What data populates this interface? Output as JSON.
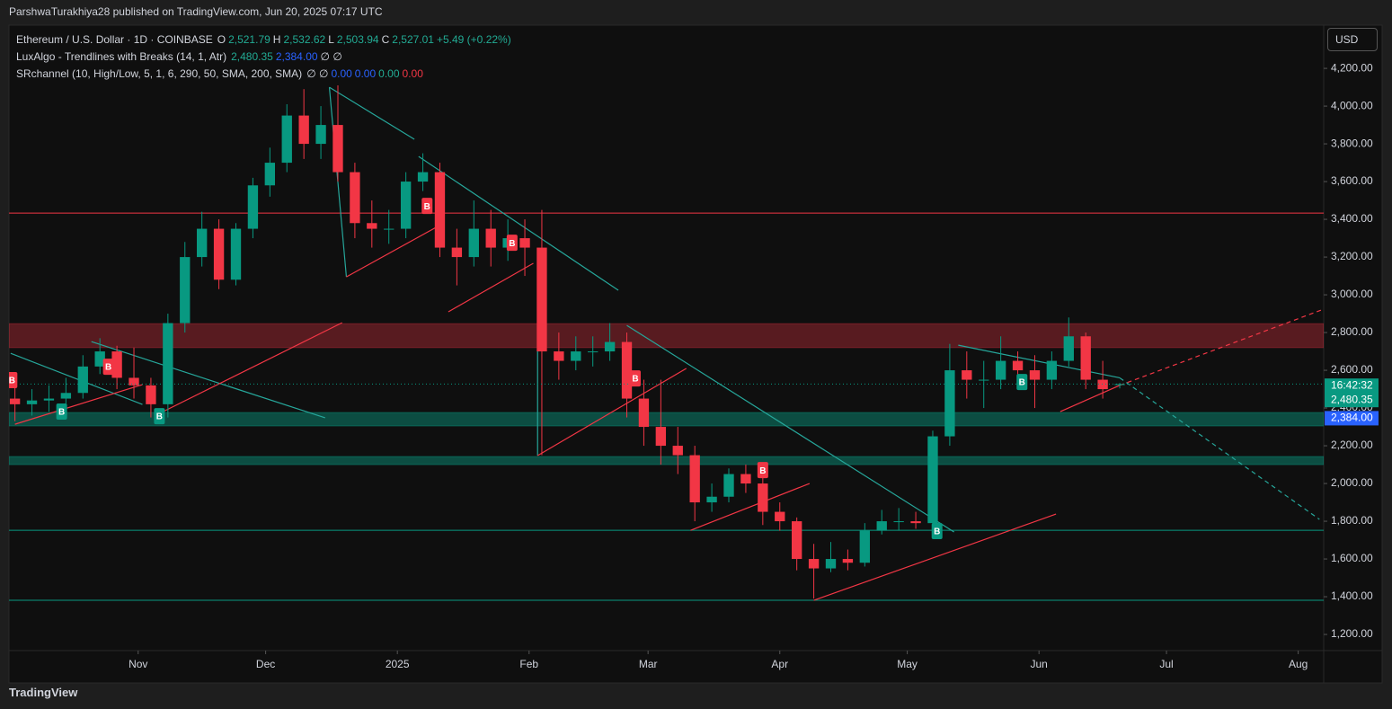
{
  "header": {
    "byline": "ParshwaTurakhiya28 published on TradingView.com, Jun 20, 2025 07:17 UTC",
    "currency": "USD",
    "footer": "TradingView"
  },
  "legend": [
    {
      "text": "Ethereum / U.S. Dollar · 1D · COINBASE",
      "items": [
        {
          "text": "O",
          "color": "#d1d4dc"
        },
        {
          "text": "2,521.79",
          "color": "#22ab94"
        },
        {
          "text": "H",
          "color": "#d1d4dc"
        },
        {
          "text": "2,532.62",
          "color": "#22ab94"
        },
        {
          "text": "L",
          "color": "#d1d4dc"
        },
        {
          "text": "2,503.94",
          "color": "#22ab94"
        },
        {
          "text": "C",
          "color": "#d1d4dc"
        },
        {
          "text": "2,527.01",
          "color": "#22ab94"
        },
        {
          "text": "+5.49 (+0.22%)",
          "color": "#22ab94"
        }
      ]
    },
    {
      "text": "LuxAlgo - Trendlines with Breaks (14, 1, Atr)",
      "items": [
        {
          "text": "2,480.35",
          "color": "#22ab94"
        },
        {
          "text": "2,384.00",
          "color": "#2962ff"
        },
        {
          "text": "∅ ∅",
          "color": "#d1d4dc"
        }
      ]
    },
    {
      "text": "SRchannel (10, High/Low, 5, 1, 6, 290, 50, SMA, 200, SMA)",
      "items": [
        {
          "text": "∅ ∅",
          "color": "#d1d4dc"
        },
        {
          "text": "0.00",
          "color": "#2962ff"
        },
        {
          "text": "0.00",
          "color": "#2962ff"
        },
        {
          "text": "0.00",
          "color": "#22ab94"
        },
        {
          "text": "0.00",
          "color": "#f23645"
        }
      ]
    }
  ],
  "chart_data": {
    "type": "candlestick",
    "xlim": [
      0.6,
      310
    ],
    "ylim": [
      1124,
      4429
    ],
    "xticks": [
      {
        "value": 31,
        "label": "Nov"
      },
      {
        "value": 61,
        "label": "Dec"
      },
      {
        "value": 92,
        "label": "2025"
      },
      {
        "value": 123,
        "label": "Feb"
      },
      {
        "value": 151,
        "label": "Mar"
      },
      {
        "value": 182,
        "label": "Apr"
      },
      {
        "value": 212,
        "label": "May"
      },
      {
        "value": 243,
        "label": "Jun"
      },
      {
        "value": 273,
        "label": "Jul"
      },
      {
        "value": 304,
        "label": "Aug"
      }
    ],
    "yticks": [
      {
        "value": 1200,
        "label": "1,200.00"
      },
      {
        "value": 1400,
        "label": "1,400.00"
      },
      {
        "value": 1600,
        "label": "1,600.00"
      },
      {
        "value": 1800,
        "label": "1,800.00"
      },
      {
        "value": 2000,
        "label": "2,000.00"
      },
      {
        "value": 2200,
        "label": "2,200.00"
      },
      {
        "value": 2400,
        "label": "2,400.00"
      },
      {
        "value": 2600,
        "label": "2,600.00"
      },
      {
        "value": 2800,
        "label": "2,800.00"
      },
      {
        "value": 3000,
        "label": "3,000.00"
      },
      {
        "value": 3200,
        "label": "3,200.00"
      },
      {
        "value": 3400,
        "label": "3,400.00"
      },
      {
        "value": 3600,
        "label": "3,600.00"
      },
      {
        "value": 3800,
        "label": "3,800.00"
      },
      {
        "value": 4000,
        "label": "4,000.00"
      },
      {
        "value": 4200,
        "label": "4,200.00"
      }
    ],
    "up_color": "#089981",
    "down_color": "#f23645",
    "x": [
      2,
      6,
      10,
      14,
      18,
      22,
      26,
      30,
      34,
      38,
      42,
      46,
      50,
      54,
      58,
      62,
      66,
      70,
      74,
      78,
      82,
      86,
      90,
      94,
      98,
      102,
      106,
      110,
      114,
      118,
      122,
      126,
      130,
      134,
      138,
      142,
      146,
      150,
      154,
      158,
      162,
      166,
      170,
      174,
      178,
      182,
      186,
      190,
      194,
      198,
      202,
      206,
      210,
      214,
      218,
      222,
      226,
      230,
      234,
      238,
      242,
      246,
      250,
      254,
      258,
      262
    ],
    "open": [
      2450,
      2420,
      2440,
      2450,
      2480,
      2620,
      2700,
      2560,
      2520,
      2420,
      2850,
      3200,
      3350,
      3080,
      3350,
      3580,
      3700,
      3950,
      3800,
      3900,
      3650,
      3380,
      3350,
      3350,
      3600,
      3650,
      3250,
      3200,
      3350,
      3250,
      3300,
      3250,
      2700,
      2650,
      2700,
      2700,
      2750,
      2450,
      2300,
      2200,
      2150,
      1900,
      1930,
      2050,
      2000,
      1850,
      1800,
      1600,
      1550,
      1600,
      1580,
      1750,
      1800,
      1800,
      1790,
      2250,
      2600,
      2550,
      2550,
      2650,
      2600,
      2550,
      2650,
      2780,
      2550,
      2521.79
    ],
    "high": [
      2520,
      2500,
      2520,
      2560,
      2680,
      2770,
      2730,
      2720,
      2560,
      2900,
      3280,
      3440,
      3400,
      3380,
      3620,
      3780,
      4010,
      4090,
      4000,
      4110,
      3700,
      3500,
      3450,
      3650,
      3750,
      3700,
      3350,
      3500,
      3450,
      3400,
      3400,
      3450,
      2800,
      2780,
      2780,
      2850,
      2800,
      2550,
      2550,
      2300,
      2200,
      2000,
      2080,
      2100,
      2050,
      1900,
      1820,
      1680,
      1690,
      1650,
      1790,
      1860,
      1870,
      1850,
      2280,
      2740,
      2700,
      2650,
      2780,
      2700,
      2680,
      2700,
      2880,
      2800,
      2650,
      2532.62
    ],
    "low": [
      2330,
      2360,
      2380,
      2400,
      2450,
      2580,
      2500,
      2450,
      2350,
      2350,
      2800,
      3150,
      3030,
      3050,
      3300,
      3520,
      3650,
      3720,
      3720,
      3600,
      3300,
      3250,
      3270,
      3300,
      3550,
      3200,
      3050,
      3150,
      3150,
      3180,
      3100,
      2150,
      2550,
      2600,
      2620,
      2650,
      2350,
      2200,
      2100,
      2050,
      1800,
      1850,
      1900,
      1950,
      1780,
      1750,
      1540,
      1390,
      1530,
      1540,
      1560,
      1730,
      1750,
      1760,
      1760,
      2200,
      2450,
      2400,
      2500,
      2520,
      2400,
      2500,
      2620,
      2500,
      2450,
      2503.94
    ],
    "close": [
      2420,
      2440,
      2450,
      2480,
      2620,
      2700,
      2560,
      2520,
      2420,
      2850,
      3200,
      3350,
      3080,
      3350,
      3580,
      3700,
      3950,
      3800,
      3900,
      3650,
      3380,
      3350,
      3350,
      3600,
      3650,
      3250,
      3200,
      3350,
      3250,
      3300,
      3250,
      2700,
      2650,
      2700,
      2700,
      2750,
      2450,
      2300,
      2200,
      2150,
      1900,
      1930,
      2050,
      2000,
      1850,
      1800,
      1600,
      1550,
      1600,
      1580,
      1750,
      1800,
      1800,
      1790,
      2250,
      2600,
      2550,
      2550,
      2650,
      2600,
      2550,
      2650,
      2780,
      2550,
      2500,
      2527.01
    ],
    "zones": [
      {
        "from": 2720,
        "to": 2847,
        "color": "rgba(242,54,69,0.32)"
      },
      {
        "from": 2305,
        "to": 2376,
        "color": "rgba(8,153,129,0.45)"
      },
      {
        "from": 2100,
        "to": 2143,
        "color": "rgba(8,153,129,0.45)"
      }
    ],
    "levels": [
      {
        "price": 3433,
        "color": "#f23645"
      },
      {
        "price": 1752,
        "color": "#089981"
      },
      {
        "price": 1381,
        "color": "#089981"
      }
    ],
    "trendlines": [
      {
        "from": [
          76,
          4100
        ],
        "to": [
          96,
          3824
        ],
        "color": "#26a69a",
        "style": "solid"
      },
      {
        "from": [
          76,
          4100
        ],
        "to": [
          80,
          3095
        ],
        "color": "#26a69a",
        "style": "solid"
      },
      {
        "from": [
          97,
          3733
        ],
        "to": [
          144,
          3024
        ],
        "color": "#26a69a",
        "style": "solid"
      },
      {
        "from": [
          146,
          2838
        ],
        "to": [
          223,
          1743
        ],
        "color": "#26a69a",
        "style": "solid"
      },
      {
        "from": [
          224,
          2733
        ],
        "to": [
          262,
          2560
        ],
        "color": "#26a69a",
        "style": "solid"
      },
      {
        "from": [
          262,
          2560
        ],
        "to": [
          309,
          1810
        ],
        "color": "#26a69a",
        "style": "dashed"
      },
      {
        "from": [
          20,
          2752
        ],
        "to": [
          75,
          2348
        ],
        "color": "#26a69a",
        "style": "solid"
      },
      {
        "from": [
          1,
          2690
        ],
        "to": [
          32,
          2419
        ],
        "color": "#26a69a",
        "style": "solid"
      },
      {
        "from": [
          125,
          2848
        ],
        "to": [
          125,
          2148
        ],
        "color": "#26a69a",
        "style": "solid"
      },
      {
        "from": [
          2,
          2314
        ],
        "to": [
          32,
          2524
        ],
        "color": "#f23645",
        "style": "solid"
      },
      {
        "from": [
          36,
          2371
        ],
        "to": [
          79,
          2852
        ],
        "color": "#f23645",
        "style": "solid"
      },
      {
        "from": [
          80,
          3095
        ],
        "to": [
          103,
          3381
        ],
        "color": "#f23645",
        "style": "solid"
      },
      {
        "from": [
          104,
          2910
        ],
        "to": [
          124,
          3167
        ],
        "color": "#f23645",
        "style": "solid"
      },
      {
        "from": [
          125,
          2148
        ],
        "to": [
          160,
          2610
        ],
        "color": "#f23645",
        "style": "solid"
      },
      {
        "from": [
          161,
          1752
        ],
        "to": [
          189,
          2000
        ],
        "color": "#f23645",
        "style": "solid"
      },
      {
        "from": [
          190,
          1381
        ],
        "to": [
          247,
          1838
        ],
        "color": "#f23645",
        "style": "solid"
      },
      {
        "from": [
          248,
          2381
        ],
        "to": [
          262,
          2520
        ],
        "color": "#f23645",
        "style": "solid"
      },
      {
        "from": [
          262,
          2520
        ],
        "to": [
          310,
          2924
        ],
        "color": "#f23645",
        "style": "dashed"
      }
    ],
    "signals": [
      {
        "x": 1.3,
        "price": 2548,
        "label": "B",
        "color": "#f23645"
      },
      {
        "x": 24,
        "price": 2619,
        "label": "B",
        "color": "#f23645"
      },
      {
        "x": 99,
        "price": 3471,
        "label": "B",
        "color": "#f23645"
      },
      {
        "x": 119,
        "price": 3276,
        "label": "B",
        "color": "#f23645"
      },
      {
        "x": 148,
        "price": 2557,
        "label": "B",
        "color": "#f23645"
      },
      {
        "x": 178,
        "price": 2071,
        "label": "B",
        "color": "#f23645"
      },
      {
        "x": 13,
        "price": 2381,
        "label": "B",
        "color": "#089981"
      },
      {
        "x": 36,
        "price": 2357,
        "label": "B",
        "color": "#089981"
      },
      {
        "x": 219,
        "price": 1748,
        "label": "B",
        "color": "#089981"
      },
      {
        "x": 239,
        "price": 2538,
        "label": "B",
        "color": "#089981"
      }
    ],
    "countdown": "16:42:32",
    "price_labels": [
      {
        "price": 2480.35,
        "label": "2,480.35",
        "color": "#089981"
      },
      {
        "price": 2384,
        "label": "2,384.00",
        "color": "#2962ff"
      }
    ]
  }
}
